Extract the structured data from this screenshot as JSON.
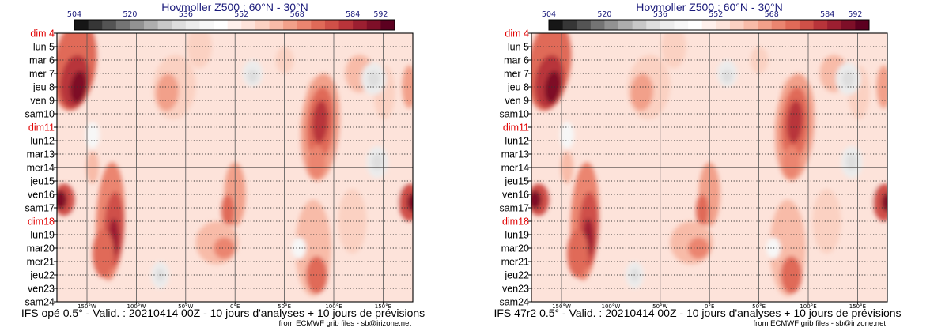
{
  "chart_data": [
    {
      "type": "heatmap",
      "title": "Hovmoller Z500 : 60°N - 30°N",
      "colorbar": {
        "ticks": [
          "504",
          "520",
          "536",
          "552",
          "568",
          "584",
          "592"
        ],
        "colors": [
          "#161616",
          "#363636",
          "#545454",
          "#747474",
          "#929292",
          "#aeaeae",
          "#c8c8c8",
          "#dedede",
          "#ececec",
          "#f7f7f7",
          "#ffffff",
          "#fff0ec",
          "#fde3da",
          "#fbd1c2",
          "#f8bba8",
          "#f2a08a",
          "#eb8570",
          "#e06a58",
          "#cf5048",
          "#b8343a",
          "#9c1f31",
          "#7e0f28",
          "#5c0020"
        ]
      },
      "y_tick_labels": [
        "dim 4",
        "lun 5",
        "mar 6",
        "mer 7",
        "jeu 8",
        "ven 9",
        "sam10",
        "dim11",
        "lun12",
        "mar13",
        "mer14",
        "jeu15",
        "ven16",
        "sam17",
        "dim18",
        "lun19",
        "mar20",
        "mer21",
        "jeu22",
        "ven23",
        "sam24"
      ],
      "x_tick_labels": [
        "150°W",
        "100°W",
        "50°W",
        "0°E",
        "50°E",
        "100°E",
        "150°E"
      ],
      "xlabel": "",
      "ylabel": "",
      "footer": "IFS opé 0.5° - Valid. : 20210414 00Z - 10 jours d'analyses + 10 jours de prévisions",
      "credit": "from ECMWF grib files - sb@irizone.net"
    },
    {
      "type": "heatmap",
      "title": "Hovmoller Z500 : 60°N - 30°N",
      "colorbar": {
        "ticks": [
          "504",
          "520",
          "536",
          "552",
          "568",
          "584",
          "592"
        ],
        "colors": [
          "#161616",
          "#363636",
          "#545454",
          "#747474",
          "#929292",
          "#aeaeae",
          "#c8c8c8",
          "#dedede",
          "#ececec",
          "#f7f7f7",
          "#ffffff",
          "#fff0ec",
          "#fde3da",
          "#fbd1c2",
          "#f8bba8",
          "#f2a08a",
          "#eb8570",
          "#e06a58",
          "#cf5048",
          "#b8343a",
          "#9c1f31",
          "#7e0f28",
          "#5c0020"
        ]
      },
      "y_tick_labels": [
        "dim 4",
        "lun 5",
        "mar 6",
        "mer 7",
        "jeu 8",
        "ven 9",
        "sam10",
        "dim11",
        "lun12",
        "mar13",
        "mer14",
        "jeu15",
        "ven16",
        "sam17",
        "dim18",
        "lun19",
        "mar20",
        "mer21",
        "jeu22",
        "ven23",
        "sam24"
      ],
      "x_tick_labels": [
        "150°W",
        "100°W",
        "50°W",
        "0°E",
        "50°E",
        "100°E",
        "150°E"
      ],
      "xlabel": "",
      "ylabel": "",
      "footer": "IFS 47r2 0.5° - Valid. : 20210414 00Z - 10 jours d'analyses + 10 jours de prévisions",
      "credit": "from ECMWF grib files - sb@irizone.net"
    }
  ],
  "sunday_color": "#e00000",
  "title_color": "#1a1a7a"
}
